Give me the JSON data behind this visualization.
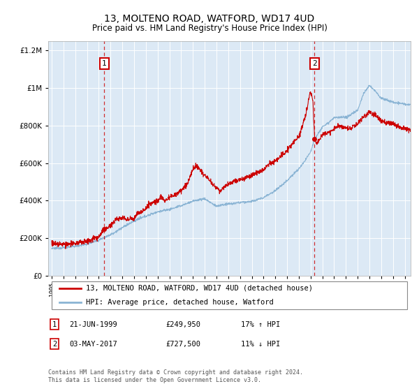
{
  "title": "13, MOLTENO ROAD, WATFORD, WD17 4UD",
  "subtitle": "Price paid vs. HM Land Registry's House Price Index (HPI)",
  "legend_line1": "13, MOLTENO ROAD, WATFORD, WD17 4UD (detached house)",
  "legend_line2": "HPI: Average price, detached house, Watford",
  "annotation1_date": "21-JUN-1999",
  "annotation1_price": "£249,950",
  "annotation1_hpi": "17% ↑ HPI",
  "annotation1_year": 1999.47,
  "annotation1_value": 249950,
  "annotation2_date": "03-MAY-2017",
  "annotation2_price": "£727,500",
  "annotation2_hpi": "11% ↓ HPI",
  "annotation2_year": 2017.34,
  "annotation2_value": 727500,
  "copyright": "Contains HM Land Registry data © Crown copyright and database right 2024.\nThis data is licensed under the Open Government Licence v3.0.",
  "background_color": "#dce9f5",
  "red_color": "#cc0000",
  "blue_color": "#8ab4d4",
  "ylim": [
    0,
    1250000
  ],
  "xlim_start": 1994.7,
  "xlim_end": 2025.5
}
